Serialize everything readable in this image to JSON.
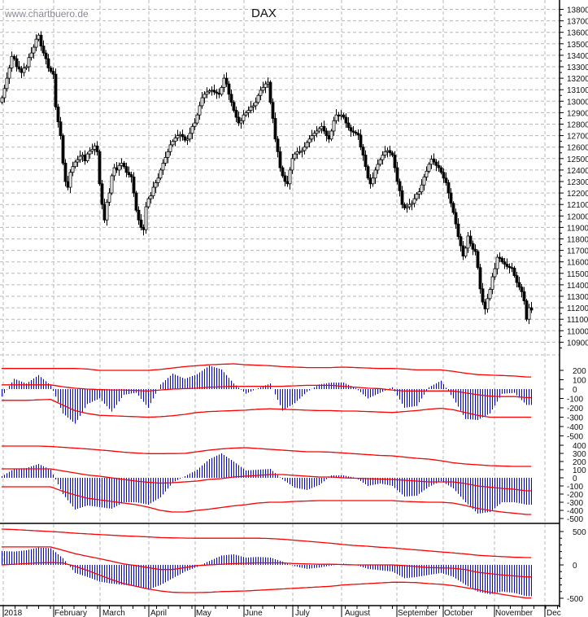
{
  "watermark": "www.chartbuero.de",
  "chart_data": [
    {
      "type": "candlestick",
      "title": "DAX",
      "ylim": [
        10850,
        13850
      ],
      "y_ticks": [
        13800,
        13700,
        13600,
        13500,
        13400,
        13300,
        13200,
        13100,
        13000,
        12900,
        12800,
        12700,
        12600,
        12500,
        12400,
        12300,
        12200,
        12100,
        12000,
        11900,
        11800,
        11700,
        11600,
        11500,
        11400,
        11300,
        11200,
        11100,
        11000,
        10900
      ],
      "grid": true,
      "x_tick_labels": [
        "2018",
        "February",
        "March",
        "April",
        "May",
        "June",
        "July",
        "August",
        "September",
        "October",
        "November",
        "Dec"
      ],
      "daily_close": [
        13030,
        13110,
        13200,
        13290,
        13390,
        13370,
        13300,
        13280,
        13250,
        13290,
        13300,
        13380,
        13420,
        13470,
        13540,
        13575,
        13480,
        13420,
        13370,
        13290,
        13260,
        13235,
        12950,
        12820,
        12700,
        12460,
        12300,
        12250,
        12380,
        12430,
        12470,
        12490,
        12520,
        12530,
        12480,
        12540,
        12565,
        12580,
        12610,
        12560,
        12280,
        12100,
        11965,
        12120,
        12200,
        12350,
        12420,
        12400,
        12440,
        12460,
        12430,
        12380,
        12360,
        12340,
        12200,
        12050,
        11965,
        11900,
        11880,
        12080,
        12150,
        12175,
        12250,
        12290,
        12330,
        12400,
        12460,
        12510,
        12560,
        12620,
        12650,
        12680,
        12700,
        12710,
        12690,
        12660,
        12670,
        12720,
        12780,
        12810,
        12880,
        12960,
        13030,
        13060,
        13080,
        13090,
        13095,
        13080,
        13070,
        13060,
        13120,
        13200,
        13150,
        13060,
        12990,
        12920,
        12860,
        12810,
        12830,
        12880,
        12900,
        12920,
        12950,
        12960,
        12990,
        13050,
        13095,
        13120,
        13150,
        13165,
        12990,
        12850,
        12670,
        12560,
        12420,
        12350,
        12300,
        12280,
        12400,
        12500,
        12540,
        12560,
        12560,
        12570,
        12600,
        12640,
        12670,
        12700,
        12720,
        12740,
        12760,
        12780,
        12740,
        12700,
        12670,
        12740,
        12830,
        12880,
        12870,
        12880,
        12860,
        12810,
        12770,
        12740,
        12730,
        12720,
        12705,
        12600,
        12530,
        12430,
        12330,
        12280,
        12330,
        12400,
        12450,
        12490,
        12530,
        12560,
        12570,
        12550,
        12530,
        12420,
        12300,
        12220,
        12100,
        12070,
        12080,
        12100,
        12110,
        12150,
        12190,
        12210,
        12270,
        12340,
        12390,
        12450,
        12495,
        12470,
        12440,
        12420,
        12380,
        12330,
        12290,
        12200,
        12110,
        12030,
        11930,
        11820,
        11740,
        11650,
        11720,
        11825,
        11760,
        11710,
        11690,
        11550,
        11365,
        11250,
        11190,
        11280,
        11360,
        11470,
        11540,
        11640,
        11630,
        11600,
        11580,
        11560,
        11550,
        11545,
        11480,
        11420,
        11380,
        11340,
        11260,
        11100,
        11200,
        11180
      ]
    },
    {
      "type": "bar",
      "sampling": "weekly",
      "ylim": [
        -550,
        280
      ],
      "y_ticks": [
        200,
        100,
        0,
        -100,
        -200,
        -300,
        -400,
        -500
      ],
      "histogram": [
        -80,
        110,
        60,
        150,
        40,
        -260,
        -370,
        -160,
        -100,
        -240,
        -60,
        -40,
        -200,
        50,
        165,
        110,
        160,
        250,
        210,
        60,
        -50,
        10,
        60,
        -230,
        -150,
        -30,
        50,
        70,
        70,
        10,
        -100,
        -40,
        20,
        -200,
        -180,
        20,
        90,
        -100,
        -320,
        -330,
        -260,
        -50,
        -40,
        -170
      ],
      "band_upper": [
        220,
        220,
        220,
        220,
        220,
        220,
        220,
        215,
        200,
        200,
        200,
        200,
        200,
        210,
        225,
        240,
        250,
        260,
        265,
        270,
        260,
        255,
        250,
        240,
        235,
        230,
        230,
        230,
        235,
        230,
        225,
        220,
        220,
        215,
        205,
        205,
        205,
        190,
        170,
        155,
        150,
        145,
        140,
        130
      ],
      "band_middle": [
        45,
        45,
        45,
        45,
        45,
        25,
        10,
        0,
        -5,
        -10,
        -10,
        -15,
        -20,
        -10,
        0,
        5,
        10,
        20,
        25,
        30,
        30,
        30,
        30,
        30,
        35,
        40,
        40,
        40,
        30,
        20,
        10,
        5,
        -10,
        -20,
        -20,
        -20,
        -20,
        -20,
        -40,
        -60,
        -75,
        -80,
        -80,
        -90
      ],
      "band_lower": [
        -120,
        -120,
        -120,
        -115,
        -110,
        -170,
        -230,
        -260,
        -280,
        -285,
        -290,
        -295,
        -300,
        -295,
        -285,
        -270,
        -250,
        -240,
        -235,
        -230,
        -225,
        -215,
        -210,
        -215,
        -220,
        -225,
        -230,
        -230,
        -235,
        -235,
        -240,
        -245,
        -250,
        -240,
        -230,
        -215,
        -205,
        -220,
        -250,
        -280,
        -300,
        -300,
        -300,
        -300
      ],
      "colors": {
        "histogram": "#0000ff",
        "bands": "#ff0000"
      }
    },
    {
      "type": "bar",
      "sampling": "weekly",
      "ylim": [
        -550,
        450
      ],
      "y_ticks": [
        400,
        300,
        200,
        100,
        0,
        -100,
        -200,
        -300,
        -400,
        -500
      ],
      "histogram": [
        20,
        110,
        120,
        170,
        100,
        -200,
        -390,
        -340,
        -360,
        -380,
        -300,
        -300,
        -330,
        -240,
        -60,
        20,
        100,
        230,
        300,
        200,
        90,
        100,
        110,
        -20,
        -120,
        -150,
        -90,
        30,
        30,
        0,
        -100,
        -70,
        -100,
        -230,
        -220,
        -110,
        -40,
        -130,
        -300,
        -440,
        -420,
        -300,
        -300,
        -330
      ],
      "band_upper": [
        390,
        390,
        390,
        390,
        385,
        375,
        365,
        355,
        343,
        330,
        315,
        305,
        297,
        297,
        298,
        300,
        320,
        340,
        355,
        365,
        370,
        360,
        350,
        340,
        330,
        320,
        320,
        315,
        305,
        295,
        285,
        275,
        270,
        255,
        240,
        230,
        210,
        185,
        170,
        160,
        150,
        145,
        140,
        140
      ],
      "band_middle": [
        110,
        110,
        110,
        110,
        110,
        85,
        60,
        35,
        20,
        0,
        -20,
        -40,
        -55,
        -65,
        -60,
        -50,
        -40,
        -20,
        -10,
        10,
        20,
        30,
        40,
        40,
        30,
        20,
        10,
        10,
        0,
        -5,
        -10,
        -15,
        -20,
        -30,
        -40,
        -50,
        -50,
        -50,
        -70,
        -100,
        -115,
        -130,
        -140,
        -160
      ],
      "band_lower": [
        -110,
        -110,
        -110,
        -110,
        -110,
        -165,
        -210,
        -250,
        -270,
        -290,
        -310,
        -330,
        -360,
        -400,
        -420,
        -420,
        -400,
        -385,
        -365,
        -345,
        -330,
        -310,
        -300,
        -300,
        -290,
        -285,
        -280,
        -280,
        -280,
        -280,
        -280,
        -280,
        -280,
        -290,
        -295,
        -300,
        -300,
        -310,
        -340,
        -375,
        -400,
        -420,
        -435,
        -450
      ],
      "colors": {
        "histogram": "#0000ff",
        "bands": "#ff0000"
      }
    },
    {
      "type": "bar",
      "sampling": "weekly",
      "ylim": [
        -600,
        600
      ],
      "y_ticks": [
        500,
        0,
        -500
      ],
      "histogram": [
        210,
        200,
        220,
        260,
        250,
        100,
        -120,
        -180,
        -250,
        -280,
        -300,
        -320,
        -370,
        -300,
        -200,
        -100,
        -30,
        60,
        140,
        160,
        110,
        120,
        110,
        50,
        -20,
        -60,
        -40,
        -10,
        20,
        0,
        -60,
        -80,
        -100,
        -200,
        -180,
        -150,
        -120,
        -180,
        -300,
        -400,
        -440,
        -400,
        -420,
        -470
      ],
      "band_upper": [
        537,
        530,
        520,
        510,
        500,
        490,
        475,
        465,
        455,
        445,
        435,
        428,
        420,
        410,
        405,
        402,
        400,
        400,
        400,
        400,
        400,
        400,
        395,
        385,
        370,
        355,
        340,
        325,
        305,
        290,
        280,
        265,
        255,
        240,
        225,
        210,
        195,
        180,
        165,
        145,
        134,
        125,
        115,
        110
      ],
      "band_middle": [
        270,
        270,
        270,
        270,
        270,
        220,
        170,
        130,
        95,
        55,
        15,
        -10,
        -40,
        -70,
        -70,
        -40,
        -10,
        0,
        10,
        20,
        25,
        30,
        30,
        30,
        20,
        15,
        10,
        10,
        5,
        0,
        0,
        0,
        0,
        -10,
        -25,
        -40,
        -45,
        -50,
        -70,
        -110,
        -130,
        -150,
        -165,
        -180
      ],
      "band_lower": [
        0,
        10,
        20,
        30,
        35,
        30,
        -20,
        -80,
        -150,
        -220,
        -280,
        -320,
        -360,
        -390,
        -410,
        -415,
        -415,
        -410,
        -400,
        -395,
        -390,
        -380,
        -370,
        -360,
        -350,
        -340,
        -330,
        -320,
        -300,
        -290,
        -280,
        -270,
        -260,
        -260,
        -265,
        -280,
        -290,
        -310,
        -340,
        -370,
        -410,
        -440,
        -470,
        -495
      ],
      "colors": {
        "histogram": "#0000ff",
        "bands": "#ff0000"
      }
    }
  ]
}
